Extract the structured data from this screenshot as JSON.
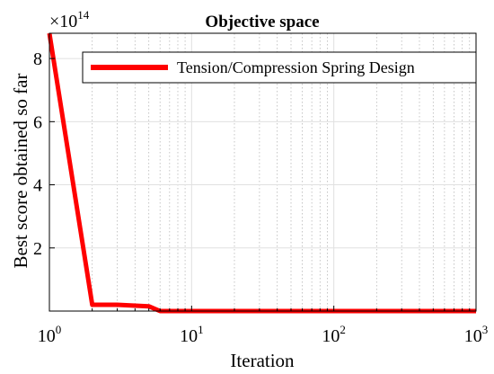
{
  "chart_data": {
    "type": "line",
    "title": "Objective space",
    "xlabel": "Iteration",
    "ylabel": "Best score obtained so far",
    "xscale": "log",
    "yscale": "linear",
    "xlim": [
      1,
      1000
    ],
    "ylim": [
      0,
      8.8
    ],
    "y_multiplier": {
      "base": "10",
      "exponent": "14"
    },
    "x_ticks": [
      {
        "value": 1,
        "base": "10",
        "exponent": "0"
      },
      {
        "value": 10,
        "base": "10",
        "exponent": "1"
      },
      {
        "value": 100,
        "base": "10",
        "exponent": "2"
      },
      {
        "value": 1000,
        "base": "10",
        "exponent": "3"
      }
    ],
    "y_ticks": [
      {
        "value": 2,
        "label": "2"
      },
      {
        "value": 4,
        "label": "4"
      },
      {
        "value": 6,
        "label": "6"
      },
      {
        "value": 8,
        "label": "8"
      }
    ],
    "grid": true,
    "minor_grid_x": true,
    "legend": {
      "location": "top-right"
    },
    "series": [
      {
        "name": "Tension/Compression Spring Design",
        "color": "#ff0000",
        "x": [
          1,
          2,
          3,
          5,
          6,
          10,
          100,
          1000
        ],
        "y": [
          8.8,
          0.2,
          0.2,
          0.15,
          0.0,
          0.0,
          0.0,
          0.0
        ]
      }
    ]
  }
}
